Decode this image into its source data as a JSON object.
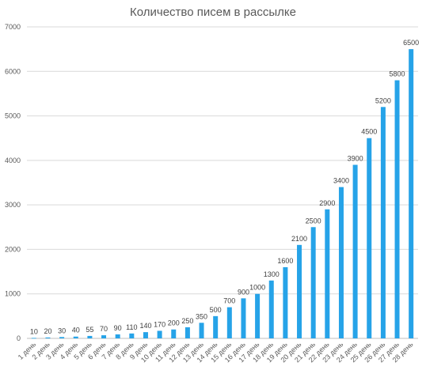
{
  "chart_data": {
    "type": "bar",
    "title": "Количество писем в рассылке",
    "xlabel": "",
    "ylabel": "",
    "ylim": [
      0,
      7000
    ],
    "yticks": [
      0,
      1000,
      2000,
      3000,
      4000,
      5000,
      6000,
      7000
    ],
    "grid": true,
    "legend": "none",
    "bar_color": "#26a3e8",
    "categories": [
      "1 день",
      "2 день",
      "3 день",
      "4 день",
      "5 день",
      "6 день",
      "7 день",
      "8 день",
      "9 день",
      "10 день",
      "11 день",
      "12 день",
      "13 день",
      "14 день",
      "15 день",
      "16 день",
      "17 день",
      "18 день",
      "19 день",
      "20 день",
      "21 день",
      "22 день",
      "23 день",
      "24 день",
      "25 день",
      "26 день",
      "27 день",
      "28 день"
    ],
    "values": [
      10,
      20,
      30,
      40,
      55,
      70,
      90,
      110,
      140,
      170,
      200,
      250,
      350,
      500,
      700,
      900,
      1000,
      1300,
      1600,
      2100,
      2500,
      2900,
      3400,
      3900,
      4500,
      5200,
      5800,
      6500
    ]
  }
}
